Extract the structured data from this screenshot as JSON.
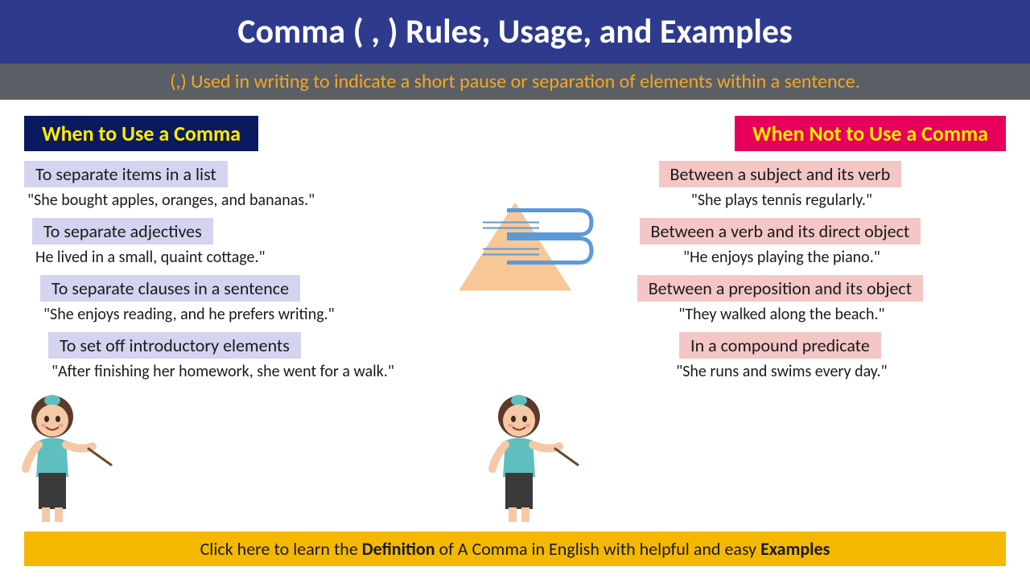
{
  "title": {
    "text": "Comma ( , ) Rules, Usage, and Examples",
    "bg": "#2e3a8c",
    "color": "#ffffff",
    "fontsize": 42
  },
  "subtitle": {
    "text": "(,) Used in writing to indicate a short pause or separation of elements within a sentence.",
    "bg": "#5a5f66",
    "color": "#f5a623",
    "fontsize": 24
  },
  "left": {
    "header": {
      "text": "When to Use a Comma",
      "bg": "#0a1a5e",
      "color": "#ffeb00",
      "fontsize": 26
    },
    "label_bg": "#d4d4f0",
    "label_color": "#1a1a1a",
    "example_color": "#1a1a1a",
    "fontsize": 22,
    "items": [
      {
        "label": "To separate items in a list",
        "example": "\"She bought apples, oranges, and bananas.\""
      },
      {
        "label": "To separate adjectives",
        "example": "He lived in a small, quaint cottage.\""
      },
      {
        "label": "To separate clauses in a sentence",
        "example": "\"She enjoys reading, and he prefers writing.\""
      },
      {
        "label": "To set off introductory elements",
        "example": "\"After finishing her homework, she went for a walk.\""
      }
    ]
  },
  "right": {
    "header": {
      "text": "When Not to Use a Comma",
      "bg": "#e6005c",
      "color": "#ffeb00",
      "fontsize": 26
    },
    "label_bg": "#f5c6c6",
    "label_color": "#1a1a1a",
    "example_color": "#1a1a1a",
    "fontsize": 22,
    "items": [
      {
        "label": "Between a subject and its verb",
        "example": "\"She plays tennis regularly.\""
      },
      {
        "label": "Between a verb and its direct object",
        "example": "\"He enjoys playing the piano.\""
      },
      {
        "label": "Between a preposition and its object",
        "example": "\"They walked along the beach.\""
      },
      {
        "label": "In a compound predicate",
        "example": "\"She runs and swims every day.\""
      }
    ]
  },
  "footer": {
    "prefix": "Click here to learn the ",
    "bold1": "Definition",
    "mid": " of A Comma in English with helpful and easy ",
    "bold2": "Examples",
    "bg": "#f5b800",
    "color": "#1a1a1a",
    "fontsize": 22
  },
  "teacher": {
    "hair": "#5a3a2a",
    "headband": "#5fbfbf",
    "skin": "#f5c9a6",
    "shirt": "#5fbfbf",
    "skirt": "#3a3a3a",
    "stick": "#6b4a2a"
  },
  "logo": {
    "orange": "#f5a65a",
    "blue": "#4a8fd6"
  }
}
